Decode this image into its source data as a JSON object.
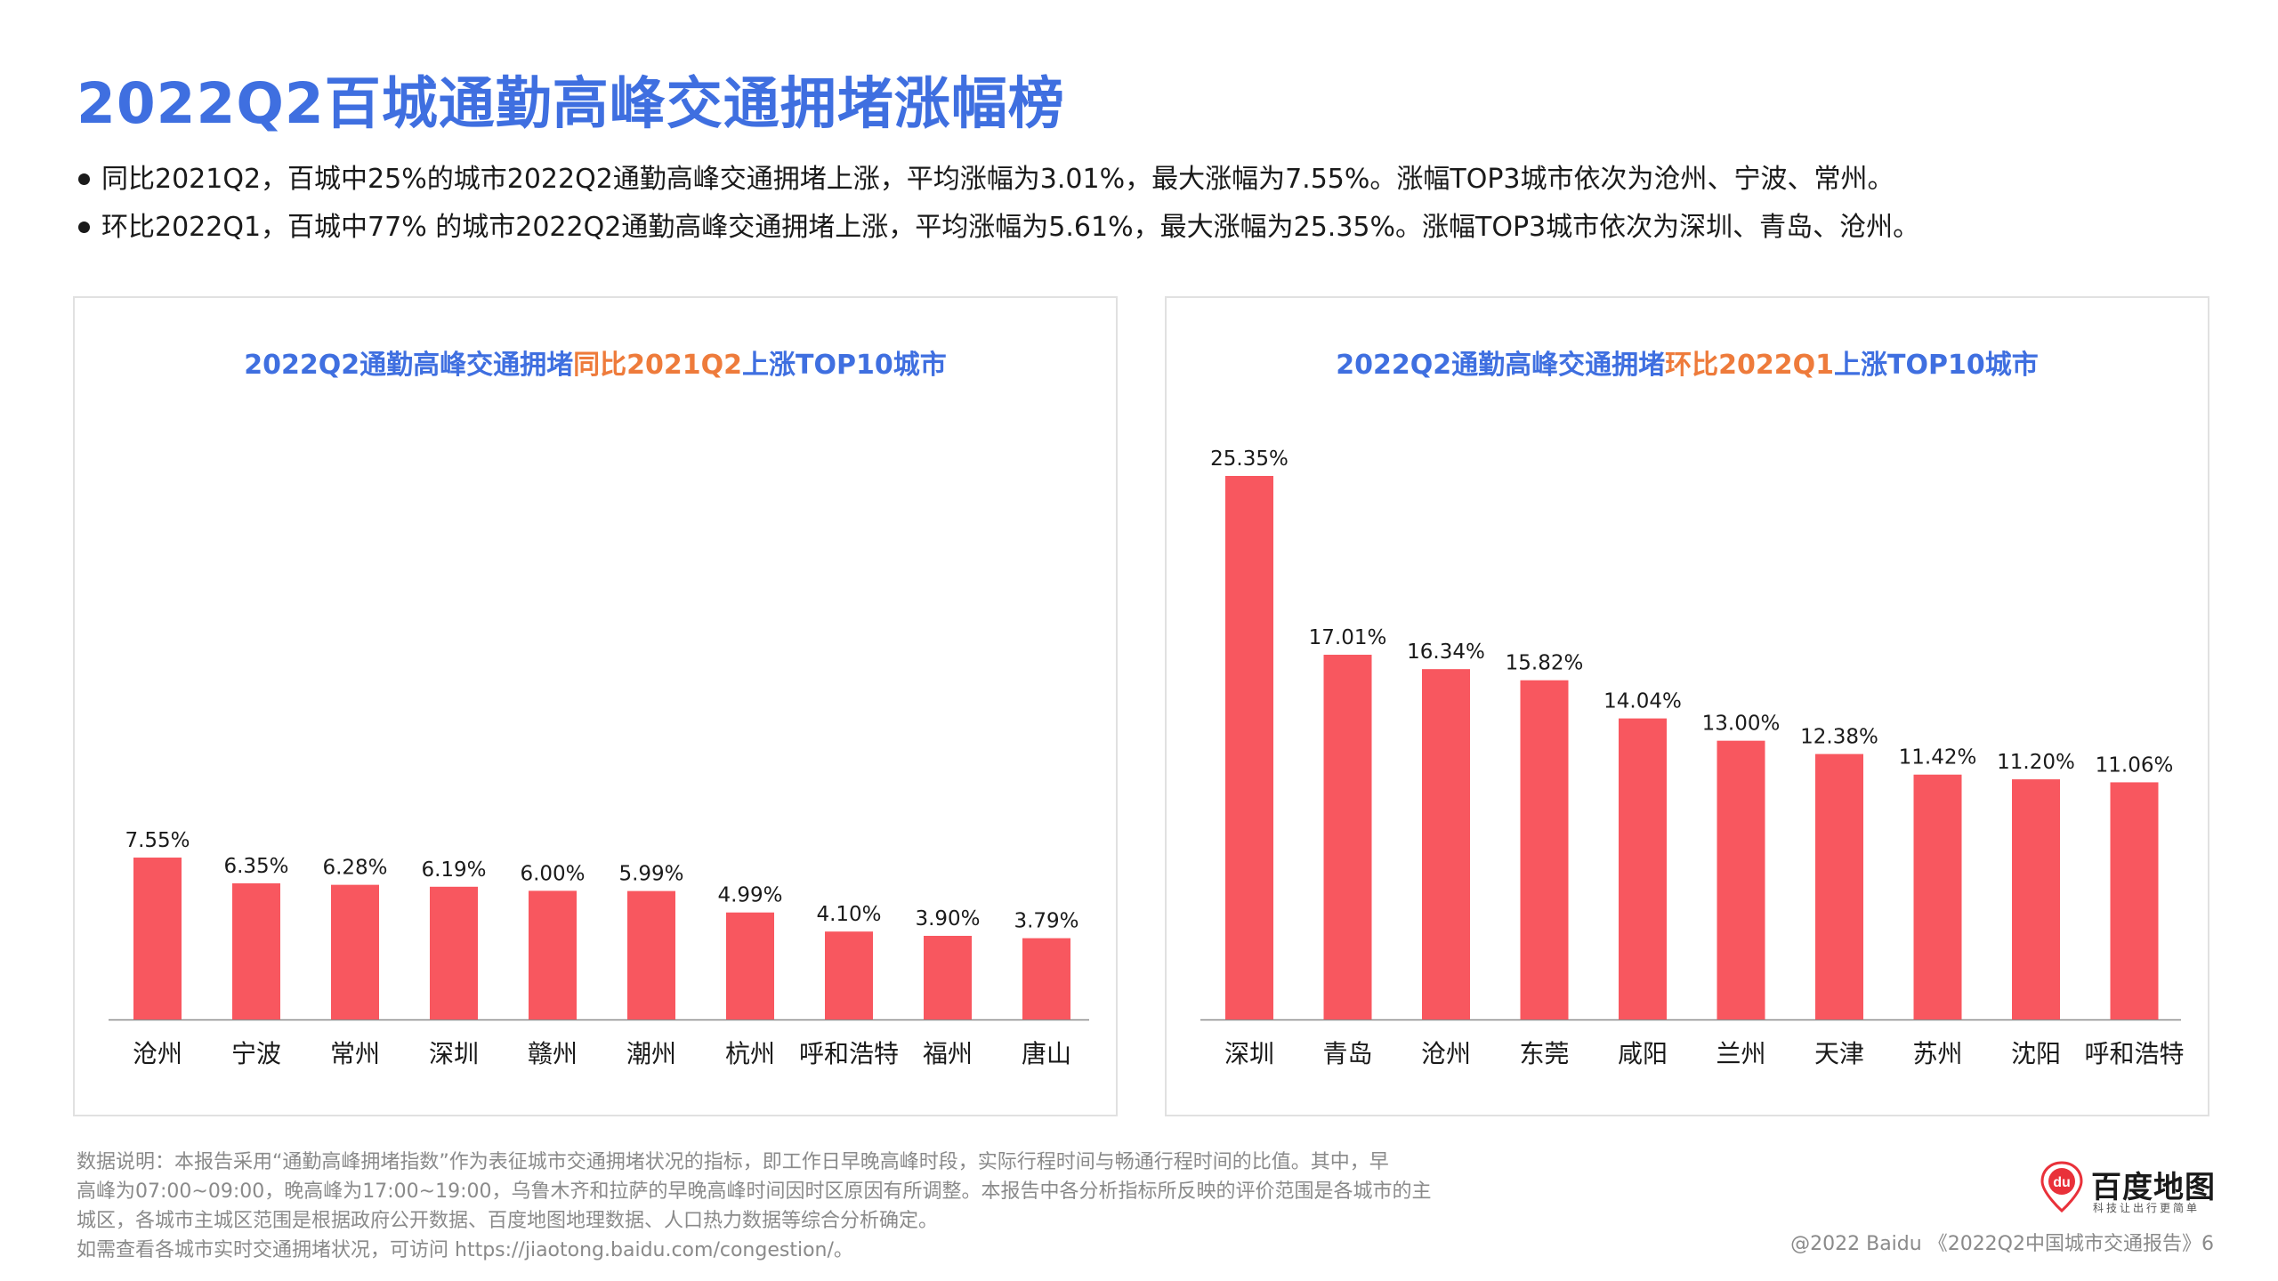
{
  "page_title": "2022Q2百城通勤高峰交通拥堵涨幅榜",
  "bullets": [
    "同比2021Q2，百城中25%的城市2022Q2通勤高峰交通拥堵上涨，平均涨幅为3.01%，最大涨幅为7.55%。涨幅TOP3城市依次为沧州、宁波、常州。",
    "环比2022Q1，百城中77% 的城市2022Q2通勤高峰交通拥堵上涨，平均涨幅为5.61%，最大涨幅为25.35%。涨幅TOP3城市依次为深圳、青岛、沧州。"
  ],
  "colors": {
    "title_blue": "#3f6fe0",
    "highlight_orange": "#ee7b3b",
    "bar_red": "#f8575f"
  },
  "panels": [
    {
      "title_prefix": "2022Q2通勤高峰交通拥堵",
      "title_highlight": "同比2021Q2",
      "title_suffix": "上涨TOP10城市"
    },
    {
      "title_prefix": "2022Q2通勤高峰交通拥堵",
      "title_highlight": "环比2022Q1",
      "title_suffix": "上涨TOP10城市"
    }
  ],
  "chart_data": [
    {
      "type": "bar",
      "title": "2022Q2通勤高峰交通拥堵同比2021Q2上涨TOP10城市",
      "categories": [
        "沧州",
        "宁波",
        "常州",
        "深圳",
        "赣州",
        "潮州",
        "杭州",
        "呼和浩特",
        "福州",
        "唐山"
      ],
      "values": [
        7.55,
        6.35,
        6.28,
        6.19,
        6.0,
        5.99,
        4.99,
        4.1,
        3.9,
        3.79
      ],
      "labels": [
        "7.55%",
        "6.35%",
        "6.28%",
        "6.19%",
        "6.00%",
        "5.99%",
        "4.99%",
        "4.10%",
        "3.90%",
        "3.79%"
      ],
      "unit": "%",
      "ylim": [
        0,
        25.35
      ],
      "grid": false,
      "color": "#f8575f"
    },
    {
      "type": "bar",
      "title": "2022Q2通勤高峰交通拥堵环比2022Q1上涨TOP10城市",
      "categories": [
        "深圳",
        "青岛",
        "沧州",
        "东莞",
        "咸阳",
        "兰州",
        "天津",
        "苏州",
        "沈阳",
        "呼和浩特"
      ],
      "values": [
        25.35,
        17.01,
        16.34,
        15.82,
        14.04,
        13.0,
        12.38,
        11.42,
        11.2,
        11.06
      ],
      "labels": [
        "25.35%",
        "17.01%",
        "16.34%",
        "15.82%",
        "14.04%",
        "13.00%",
        "12.38%",
        "11.42%",
        "11.20%",
        "11.06%"
      ],
      "unit": "%",
      "ylim": [
        0,
        25.35
      ],
      "grid": false,
      "color": "#f8575f"
    }
  ],
  "footnote": [
    "数据说明：本报告采用“通勤高峰拥堵指数”作为表征城市交通拥堵状况的指标，即工作日早晚高峰时段，实际行程时间与畅通行程时间的比值。其中，早",
    "高峰为07:00~09:00，晚高峰为17:00~19:00，乌鲁木齐和拉萨的早晚高峰时间因时区原因有所调整。本报告中各分析指标所反映的评价范围是各城市的主",
    "城区，各城市主城区范围是根据政府公开数据、百度地图地理数据、人口热力数据等综合分析确定。",
    "如需查看各城市实时交通拥堵状况，可访问 https://jiaotong.baidu.com/congestion/。"
  ],
  "logo": {
    "mark": "du",
    "name": "百度地图",
    "tagline": "科技让出行更简单"
  },
  "copyright": "@2022 Baidu 《2022Q2中国城市交通报告》6"
}
